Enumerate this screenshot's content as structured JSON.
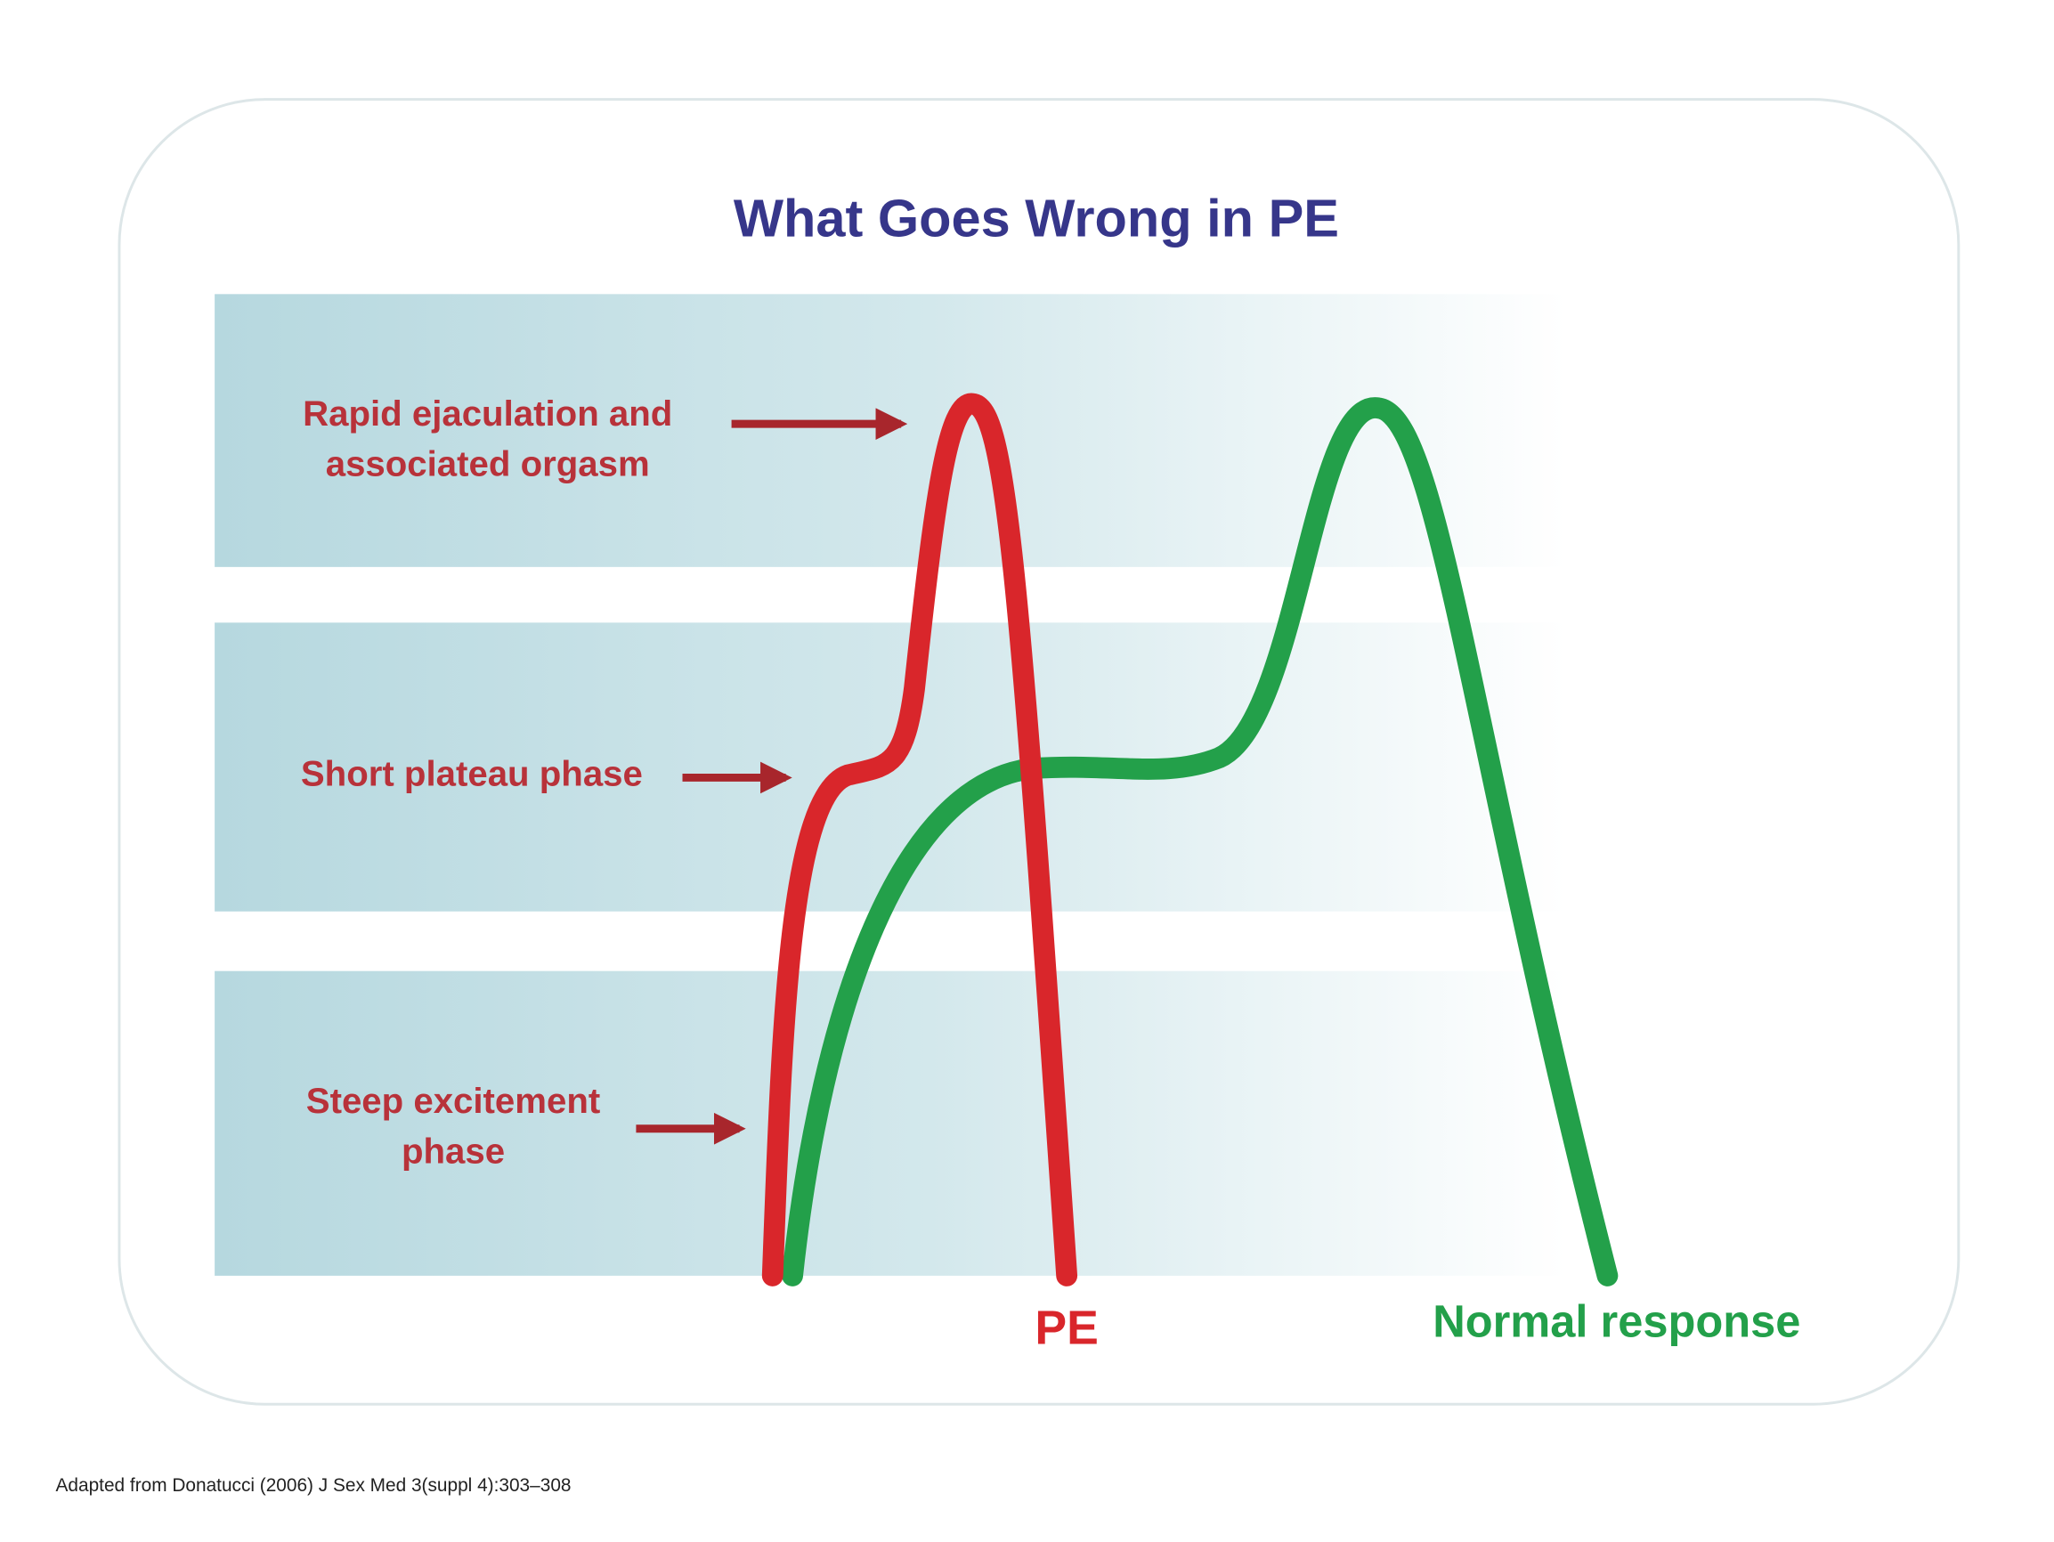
{
  "title": "What Goes Wrong in PE",
  "phases": [
    {
      "label": [
        "Rapid ejaculation and",
        "associated orgasm"
      ]
    },
    {
      "label": [
        "Short plateau phase"
      ]
    },
    {
      "label": [
        "Steep excitement",
        "phase"
      ]
    }
  ],
  "curves": [
    {
      "name": "PE",
      "color": "#d9262b"
    },
    {
      "name": "Normal response",
      "color": "#23a04a"
    }
  ],
  "footnote": "Adapted from Donatucci (2006) J Sex Med 3(suppl 4):303–308"
}
